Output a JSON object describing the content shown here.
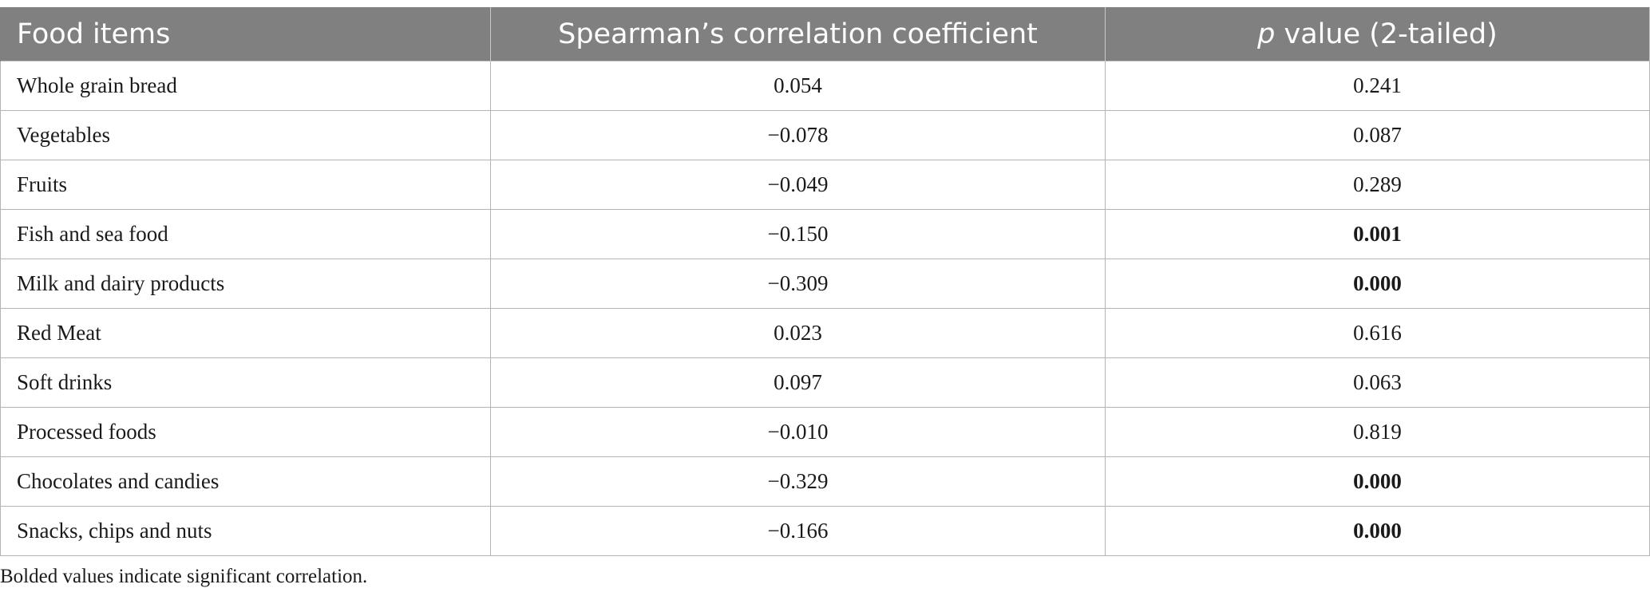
{
  "table": {
    "headers": {
      "col1": "Food items",
      "col2": "Spearman’s correlation coefficient",
      "col3_italic": "p",
      "col3_rest": " value (2-tailed)"
    },
    "rows": [
      {
        "item": "Whole grain bread",
        "coef": "0.054",
        "p": "0.241",
        "bold": false
      },
      {
        "item": "Vegetables",
        "coef": "−0.078",
        "p": "0.087",
        "bold": false
      },
      {
        "item": "Fruits",
        "coef": "−0.049",
        "p": "0.289",
        "bold": false
      },
      {
        "item": "Fish and sea food",
        "coef": "−0.150",
        "p": "0.001",
        "bold": true
      },
      {
        "item": "Milk and dairy products",
        "coef": "−0.309",
        "p": "0.000",
        "bold": true
      },
      {
        "item": "Red Meat",
        "coef": "0.023",
        "p": "0.616",
        "bold": false
      },
      {
        "item": "Soft drinks",
        "coef": "0.097",
        "p": "0.063",
        "bold": false
      },
      {
        "item": "Processed foods",
        "coef": "−0.010",
        "p": "0.819",
        "bold": false
      },
      {
        "item": "Chocolates and candies",
        "coef": "−0.329",
        "p": "0.000",
        "bold": true
      },
      {
        "item": "Snacks, chips and nuts",
        "coef": "−0.166",
        "p": "0.000",
        "bold": true
      }
    ]
  },
  "footnote": "Bolded values indicate significant correlation.",
  "colors": {
    "header_bg": "#808080",
    "header_text": "#ffffff",
    "grid": "#b4b4b4"
  }
}
